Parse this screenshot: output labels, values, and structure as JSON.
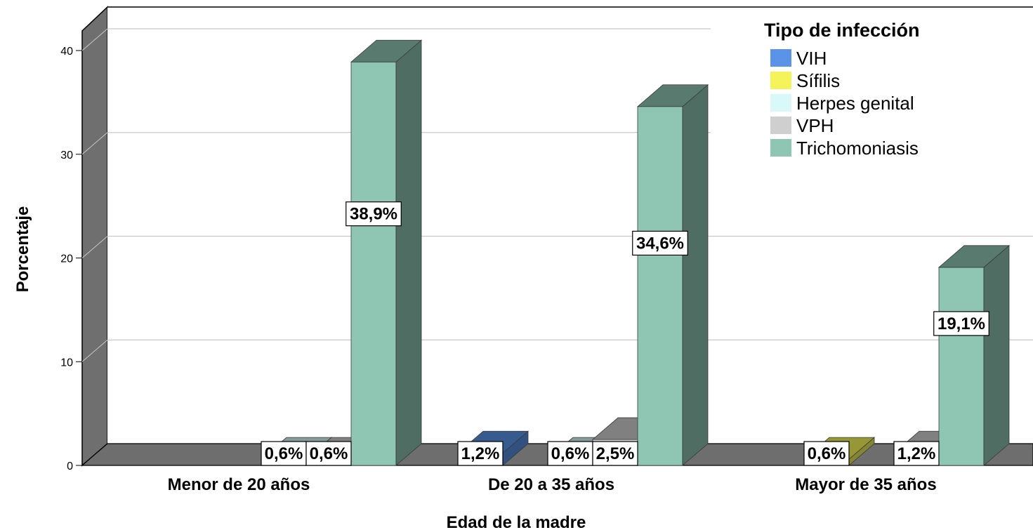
{
  "chart_data": {
    "type": "bar",
    "xlabel": "Edad de la madre",
    "ylabel": "Porcentaje",
    "ylim": [
      0,
      40
    ],
    "yticks": [
      0,
      10,
      20,
      30,
      40
    ],
    "grid": true,
    "legend_position": "top-right",
    "legend_title": "Tipo de infección",
    "categories": [
      "Menor de 20 años",
      "De 20 a 35 años",
      "Mayor de 35 años"
    ],
    "series": [
      {
        "name": "VIH",
        "color": "#5b93e6",
        "values": [
          0,
          1.2,
          0
        ],
        "labels": [
          "",
          "1,2%",
          ""
        ]
      },
      {
        "name": "Sífilis",
        "color": "#f4f45a",
        "values": [
          0,
          0,
          0.6
        ],
        "labels": [
          "",
          "",
          "0,6%"
        ]
      },
      {
        "name": "Herpes genital",
        "color": "#d9f8f8",
        "values": [
          0.6,
          0.6,
          0
        ],
        "labels": [
          "0,6%",
          "0,6%",
          ""
        ]
      },
      {
        "name": "VPH",
        "color": "#cfcfcf",
        "values": [
          0.6,
          2.5,
          1.2
        ],
        "labels": [
          "0,6%",
          "2,5%",
          "1,2%"
        ]
      },
      {
        "name": "Trichomoniasis",
        "color": "#8fc6b3",
        "values": [
          38.9,
          34.6,
          19.1
        ],
        "labels": [
          "38,9%",
          "34,6%",
          "19,1%"
        ]
      }
    ]
  }
}
